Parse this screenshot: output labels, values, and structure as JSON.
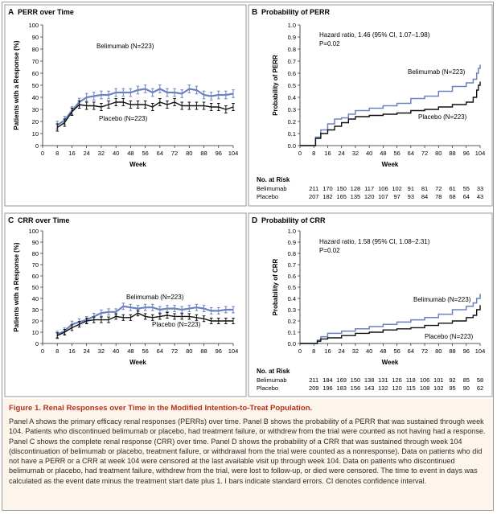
{
  "figure": {
    "caption_number": "Figure 1.",
    "caption_title": "Renal Responses over Time in the Modified Intention-to-Treat Population.",
    "caption_body": "Panel A shows the primary efficacy renal responses (PERRs) over time. Panel B shows the probability of a PERR that was sustained through week 104. Patients who discontinued belimumab or placebo, had treatment failure, or withdrew from the trial were counted as not having had a response. Panel C shows the complete renal response (CRR) over time. Panel D shows the probability of a CRR that was sustained through week 104 (discontinuation of belimumab or placebo, treatment failure, or withdrawal from the trial were counted as a nonresponse). Data on patients who did not have a PERR or a CRR at week 104 were censored at the last available visit up through week 104. Data on patients who discontinued belimumab or placebo, had treatment failure, withdrew from the trial, were lost to follow-up, or died were censored. The time to event in days was calculated as the event date minus the treatment start date plus 1. I bars indicate standard errors. CI denotes confidence interval."
  },
  "colors": {
    "belimumab": "#6b82bf",
    "placebo": "#111111",
    "panel_letter": "#111111"
  },
  "chart_data": [
    {
      "id": "A",
      "type": "line",
      "panel_letter": "A",
      "title": "PERR over Time",
      "xlabel": "Week",
      "ylabel": "Patients with a Response (%)",
      "xticks": [
        0,
        8,
        16,
        24,
        32,
        40,
        48,
        56,
        64,
        72,
        80,
        88,
        96,
        104
      ],
      "yticks": [
        0,
        10,
        20,
        30,
        40,
        50,
        60,
        70,
        80,
        90,
        100
      ],
      "xlim": [
        0,
        104
      ],
      "ylim": [
        0,
        100
      ],
      "x": [
        8,
        12,
        16,
        20,
        24,
        28,
        32,
        36,
        40,
        44,
        48,
        52,
        56,
        60,
        64,
        68,
        72,
        76,
        80,
        84,
        88,
        92,
        96,
        100,
        104
      ],
      "series": [
        {
          "name": "Belimumab (N=223)",
          "color": "#6b82bf",
          "error": 3.2,
          "values": [
            17,
            21,
            29,
            36,
            40,
            41,
            42,
            42,
            44,
            44,
            44,
            46,
            47,
            44,
            47,
            44,
            44,
            43,
            47,
            46,
            42,
            41,
            42,
            42,
            43
          ]
        },
        {
          "name": "Placebo (N=223)",
          "color": "#111111",
          "error": 3.0,
          "values": [
            15,
            19,
            28,
            34,
            33,
            33,
            32,
            34,
            36,
            36,
            34,
            34,
            34,
            32,
            36,
            34,
            36,
            33,
            33,
            33,
            33,
            32,
            32,
            30,
            32
          ]
        }
      ]
    },
    {
      "id": "B",
      "type": "line",
      "panel_letter": "B",
      "title": "Probability of PERR",
      "xlabel": "Week",
      "ylabel": "Probability of PERR",
      "xticks": [
        0,
        8,
        16,
        24,
        32,
        40,
        48,
        56,
        64,
        72,
        80,
        88,
        96,
        104
      ],
      "yticks": [
        "0.0",
        "0.1",
        "0.2",
        "0.3",
        "0.4",
        "0.5",
        "0.6",
        "0.7",
        "0.8",
        "0.9",
        "1.0"
      ],
      "xlim": [
        0,
        104
      ],
      "ylim": [
        0,
        1
      ],
      "annotation": [
        "Hazard ratio, 1.46 (95% CI, 1.07–1.98)",
        "P=0.02"
      ],
      "series": [
        {
          "name": "Belimumab (N=223)",
          "color": "#6b82bf",
          "x": [
            0,
            8,
            9,
            12,
            16,
            20,
            24,
            28,
            32,
            40,
            48,
            56,
            64,
            72,
            80,
            88,
            96,
            100,
            102,
            103,
            104
          ],
          "y": [
            0,
            0,
            0.07,
            0.13,
            0.18,
            0.22,
            0.23,
            0.26,
            0.29,
            0.31,
            0.33,
            0.35,
            0.39,
            0.41,
            0.45,
            0.49,
            0.52,
            0.55,
            0.6,
            0.64,
            0.67
          ]
        },
        {
          "name": "Placebo (N=223)",
          "color": "#111111",
          "x": [
            0,
            8,
            9,
            12,
            16,
            20,
            24,
            28,
            32,
            40,
            48,
            56,
            64,
            72,
            80,
            88,
            96,
            100,
            102,
            103,
            104
          ],
          "y": [
            0,
            0,
            0.06,
            0.1,
            0.13,
            0.16,
            0.19,
            0.22,
            0.24,
            0.25,
            0.26,
            0.27,
            0.29,
            0.3,
            0.32,
            0.34,
            0.36,
            0.4,
            0.46,
            0.5,
            0.53
          ]
        }
      ],
      "at_risk": {
        "header": "No. at Risk",
        "rows": [
          {
            "label": "Belimumab",
            "values": [
              "211",
              "170",
              "150",
              "128",
              "117",
              "106",
              "102",
              "91",
              "81",
              "72",
              "61",
              "55",
              "33"
            ]
          },
          {
            "label": "Placebo",
            "values": [
              "207",
              "182",
              "165",
              "135",
              "120",
              "107",
              "97",
              "93",
              "84",
              "78",
              "68",
              "64",
              "43"
            ]
          }
        ]
      }
    },
    {
      "id": "C",
      "type": "line",
      "panel_letter": "C",
      "title": "CRR over Time",
      "xlabel": "Week",
      "ylabel": "Patients with a Response (%)",
      "xticks": [
        0,
        8,
        16,
        24,
        32,
        40,
        48,
        56,
        64,
        72,
        80,
        88,
        96,
        104
      ],
      "yticks": [
        0,
        10,
        20,
        30,
        40,
        50,
        60,
        70,
        80,
        90,
        100
      ],
      "xlim": [
        0,
        104
      ],
      "ylim": [
        0,
        100
      ],
      "x": [
        8,
        12,
        16,
        20,
        24,
        28,
        32,
        36,
        40,
        44,
        48,
        52,
        56,
        60,
        64,
        68,
        72,
        76,
        80,
        84,
        88,
        92,
        96,
        100,
        104
      ],
      "series": [
        {
          "name": "Belimumab (N=223)",
          "color": "#6b82bf",
          "error": 2.8,
          "values": [
            8,
            11,
            17,
            19,
            21,
            24,
            27,
            28,
            28,
            33,
            32,
            31,
            32,
            32,
            30,
            31,
            31,
            30,
            31,
            32,
            31,
            29,
            29,
            30,
            30
          ]
        },
        {
          "name": "Placebo (N=223)",
          "color": "#111111",
          "error": 2.5,
          "values": [
            7,
            10,
            14,
            17,
            20,
            21,
            21,
            21,
            24,
            23,
            23,
            27,
            24,
            23,
            24,
            25,
            24,
            24,
            24,
            23,
            22,
            20,
            20,
            20,
            20
          ]
        }
      ]
    },
    {
      "id": "D",
      "type": "line",
      "panel_letter": "D",
      "title": "Probability of CRR",
      "xlabel": "Week",
      "ylabel": "Probability of CRR",
      "xticks": [
        0,
        8,
        16,
        24,
        32,
        40,
        48,
        56,
        64,
        72,
        80,
        88,
        96,
        104
      ],
      "yticks": [
        "0.0",
        "0.1",
        "0.2",
        "0.3",
        "0.4",
        "0.5",
        "0.6",
        "0.7",
        "0.8",
        "0.9",
        "1.0"
      ],
      "xlim": [
        0,
        104
      ],
      "ylim": [
        0,
        1
      ],
      "annotation": [
        "Hazard ratio, 1.58 (95% CI, 1.08–2.31)",
        "P=0.02"
      ],
      "series": [
        {
          "name": "Belimumab (N=223)",
          "color": "#6b82bf",
          "x": [
            0,
            8,
            10,
            12,
            16,
            24,
            32,
            40,
            48,
            56,
            64,
            72,
            80,
            88,
            96,
            100,
            102,
            104
          ],
          "y": [
            0,
            0,
            0.03,
            0.06,
            0.09,
            0.11,
            0.13,
            0.15,
            0.17,
            0.19,
            0.21,
            0.23,
            0.26,
            0.3,
            0.33,
            0.36,
            0.4,
            0.44
          ]
        },
        {
          "name": "Placebo (N=223)",
          "color": "#111111",
          "x": [
            0,
            8,
            10,
            12,
            16,
            24,
            32,
            40,
            48,
            56,
            64,
            72,
            80,
            88,
            96,
            100,
            102,
            104
          ],
          "y": [
            0,
            0,
            0.02,
            0.04,
            0.05,
            0.07,
            0.09,
            0.1,
            0.12,
            0.13,
            0.14,
            0.16,
            0.18,
            0.2,
            0.23,
            0.25,
            0.3,
            0.34
          ]
        }
      ],
      "at_risk": {
        "header": "No. at Risk",
        "rows": [
          {
            "label": "Belimumab",
            "values": [
              "211",
              "184",
              "169",
              "150",
              "138",
              "131",
              "126",
              "118",
              "106",
              "101",
              "92",
              "85",
              "58"
            ]
          },
          {
            "label": "Placebo",
            "values": [
              "209",
              "196",
              "183",
              "156",
              "143",
              "132",
              "120",
              "115",
              "108",
              "102",
              "95",
              "90",
              "62"
            ]
          }
        ]
      }
    }
  ]
}
